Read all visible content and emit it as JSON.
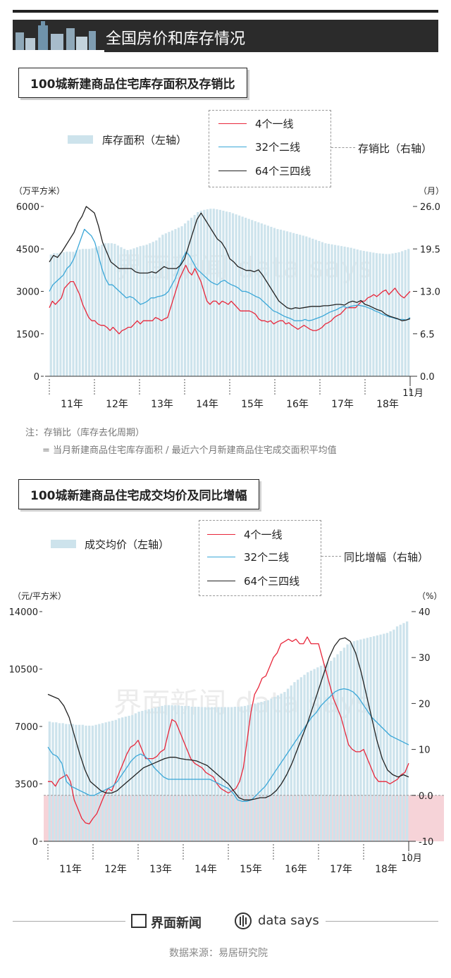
{
  "header": {
    "title": "全国房价和库存情况"
  },
  "chart1": {
    "section_title": "100城新建商品住宅库存面积及存销比",
    "legend": {
      "bar_label": "库存面积（左轴）",
      "right_label": "存销比（右轴）",
      "series": [
        "4个一线",
        "32个二线",
        "64个三四线"
      ]
    }
  },
  "note": {
    "line1": "注：存销比（库存去化周期）",
    "line2": "= 当月新建商品住宅库存面积 / 最近六个月新建商品住宅成交面积平均值"
  },
  "chart2": {
    "section_title": "100城新建商品住宅成交均价及同比增幅",
    "legend": {
      "bar_label": "成交均价（左轴）",
      "right_label": "同比增幅（右轴）",
      "series": [
        "4个一线",
        "32个二线",
        "64个三四线"
      ]
    }
  },
  "chart_data": [
    {
      "type": "bar",
      "title": "100城新建商品住宅库存面积及存销比",
      "ylabel_left": "（万平方米）",
      "ylabel_right": "（月）",
      "ylim_left": [
        0,
        6000
      ],
      "yticks_left": [
        "0",
        "1500",
        "3000",
        "4500",
        "6000"
      ],
      "ylim_right": [
        0,
        26
      ],
      "yticks_right": [
        "0.0",
        "6.5",
        "13.0",
        "19.5",
        "26.0"
      ],
      "x_labels": [
        "11年",
        "12年",
        "13年",
        "14年",
        "15年",
        "16年",
        "17年",
        "18年"
      ],
      "end_label": "11月",
      "colors": {
        "bar": "#cde3ec",
        "tier1": "#e8273b",
        "tier2": "#3aa7d8",
        "tier3": "#222222"
      },
      "bars": [
        4300,
        4350,
        4350,
        4380,
        4380,
        4400,
        4400,
        4400,
        4450,
        4480,
        4500,
        4500,
        4500,
        4520,
        4550,
        4600,
        4650,
        4700,
        4700,
        4700,
        4680,
        4620,
        4560,
        4500,
        4460,
        4480,
        4520,
        4560,
        4600,
        4620,
        4650,
        4700,
        4750,
        4800,
        4900,
        5000,
        5050,
        5100,
        5150,
        5200,
        5250,
        5300,
        5400,
        5500,
        5600,
        5700,
        5800,
        5850,
        5880,
        5900,
        5920,
        5920,
        5900,
        5880,
        5850,
        5820,
        5800,
        5760,
        5720,
        5680,
        5640,
        5600,
        5560,
        5520,
        5480,
        5440,
        5400,
        5360,
        5320,
        5280,
        5240,
        5200,
        5180,
        5150,
        5120,
        5090,
        5060,
        5030,
        5000,
        4970,
        4940,
        4900,
        4860,
        4820,
        4780,
        4740,
        4700,
        4680,
        4660,
        4640,
        4620,
        4600,
        4580,
        4560,
        4540,
        4510,
        4480,
        4450,
        4430,
        4410,
        4390,
        4370,
        4350,
        4340,
        4330,
        4320,
        4320,
        4340,
        4360,
        4380,
        4420,
        4460,
        4500
      ],
      "series": [
        {
          "name": "4个一线",
          "values": [
            10.5,
            11.5,
            11,
            11.5,
            12,
            13.5,
            14,
            14.5,
            14.5,
            13.5,
            12.5,
            11,
            10,
            9,
            8.5,
            8.5,
            8,
            7.8,
            7.8,
            7.5,
            7,
            7.5,
            7,
            6.5,
            7,
            7.2,
            7.5,
            7.5,
            8,
            8.5,
            8,
            8.5,
            8.5,
            8.5,
            8.5,
            9,
            8.8,
            8.5,
            8.8,
            9,
            10.5,
            12,
            13.5,
            15,
            16,
            17,
            16,
            15.5,
            16.5,
            15.5,
            14.5,
            13,
            11.5,
            11,
            11.5,
            11.5,
            11,
            11.5,
            11.3,
            11,
            11.5,
            11,
            10.5,
            10,
            10,
            10,
            10,
            9.8,
            9.5,
            8.8,
            8.5,
            8.5,
            8.3,
            8.5,
            8,
            8.3,
            8.5,
            8.5,
            8,
            8.2,
            7.8,
            7.5,
            7.2,
            7.5,
            7.8,
            7.5,
            7.2,
            7,
            7,
            7.2,
            7.5,
            8,
            8.2,
            8.5,
            9,
            9.3,
            9.5,
            10,
            10.5,
            10.5,
            10.5,
            10.5,
            11,
            11.5,
            11.5,
            12,
            12.2,
            12.5,
            12.2,
            12.6,
            13,
            13.2,
            12.5,
            13,
            13.5,
            12.8,
            12.3,
            12,
            12.5,
            13
          ]
        },
        {
          "name": "32个二线",
          "values": [
            13,
            14,
            14.5,
            15,
            15.5,
            16.5,
            17,
            18,
            19.5,
            21,
            22.5,
            22,
            21.5,
            20.5,
            18.5,
            16.5,
            15,
            14,
            14,
            13.5,
            13,
            12.5,
            12,
            12.2,
            12,
            11.5,
            11,
            11.2,
            11.5,
            12,
            12,
            12.2,
            12.3,
            12.5,
            13,
            14,
            15,
            16.5,
            18,
            19,
            18.5,
            17.5,
            16.5,
            16,
            15.5,
            15,
            14.5,
            14.2,
            14,
            14.5,
            14.7,
            14.3,
            14,
            13.8,
            13.5,
            13,
            13,
            12.8,
            12.5,
            12.2,
            12,
            11.5,
            11,
            10.5,
            10,
            9.8,
            9.5,
            9.2,
            9,
            8.8,
            8.5,
            8.5,
            8.5,
            8.7,
            8.5,
            8.6,
            8.8,
            9,
            9.2,
            9.5,
            9.8,
            10,
            10.2,
            10.5,
            10.7,
            10.5,
            10.7,
            10.8,
            10.9,
            10.8,
            10.7,
            10.5,
            10.3,
            10,
            9.8,
            9.5,
            9.3,
            9.1,
            9,
            8.8,
            8.7,
            8.7,
            8.6,
            9
          ]
        },
        {
          "name": "64个三四线",
          "values": [
            17.5,
            18.5,
            18.2,
            19,
            20,
            21,
            22,
            23.5,
            24.5,
            26,
            25.5,
            25,
            23,
            20.5,
            19,
            17.5,
            17,
            16.5,
            16.5,
            16.5,
            16.5,
            16,
            15.8,
            15.8,
            15.8,
            16,
            15.8,
            16.3,
            16.8,
            16.5,
            16.5,
            16.5,
            17,
            18,
            20,
            22,
            24,
            25,
            24,
            23,
            22,
            21,
            20.5,
            19.5,
            18,
            17.5,
            16.8,
            16.5,
            16.2,
            16.2,
            16,
            16.3,
            15.5,
            14.5,
            13.5,
            12.5,
            11.5,
            11,
            10.5,
            10.3,
            10.5,
            10.4,
            10.5,
            10.6,
            10.7,
            10.7,
            10.7,
            10.8,
            10.8,
            10.9,
            11,
            11,
            10.9,
            11.3,
            11.5,
            11.3,
            11.6,
            11,
            10.8,
            10.5,
            10.2,
            10,
            9.5,
            9.2,
            9,
            8.8,
            8.5,
            8.6,
            8.8
          ]
        }
      ]
    },
    {
      "type": "bar",
      "title": "100城新建商品住宅成交均价及同比增幅",
      "ylabel_left": "（元/平方米）",
      "ylabel_right": "（%）",
      "ylim_left": [
        0,
        14000
      ],
      "yticks_left": [
        "0",
        "3500",
        "7000",
        "10500",
        "14000"
      ],
      "ylim_right": [
        -10,
        40
      ],
      "yticks_right": [
        "-10",
        "0.0",
        "10",
        "20",
        "30",
        "40"
      ],
      "x_labels": [
        "11年",
        "12年",
        "13年",
        "14年",
        "15年",
        "16年",
        "17年",
        "18年"
      ],
      "end_label": "10月",
      "colors": {
        "bar": "#cde3ec",
        "negative_band": "#f6d3d8",
        "tier1": "#e8273b",
        "tier2": "#3aa7d8",
        "tier3": "#222222"
      },
      "bars": [
        7300,
        7250,
        7250,
        7200,
        7200,
        7150,
        7150,
        7150,
        7100,
        7100,
        7100,
        7050,
        7050,
        7050,
        7100,
        7150,
        7200,
        7250,
        7300,
        7350,
        7400,
        7500,
        7550,
        7600,
        7650,
        7700,
        7800,
        7900,
        7950,
        8000,
        8050,
        8100,
        8150,
        8200,
        8250,
        8300,
        8300,
        8300,
        8300,
        8280,
        8250,
        8250,
        8250,
        8200,
        8200,
        8200,
        8180,
        8180,
        8180,
        8180,
        8180,
        8180,
        8180,
        8180,
        8180,
        8180,
        8200,
        8200,
        8220,
        8250,
        8300,
        8350,
        8400,
        8450,
        8500,
        8550,
        8600,
        8700,
        8800,
        8900,
        9000,
        9100,
        9300,
        9500,
        9700,
        9850,
        10000,
        10150,
        10300,
        10400,
        10500,
        10600,
        10700,
        10800,
        10900,
        11000,
        11200,
        11400,
        11600,
        11800,
        12000,
        12100,
        12200,
        12250,
        12300,
        12350,
        12400,
        12450,
        12500,
        12550,
        12600,
        12650,
        12700,
        12800,
        12900,
        13100,
        13200,
        13300,
        13400
      ],
      "series": [
        {
          "name": "4个一线",
          "values": [
            3,
            3,
            2,
            3.5,
            4,
            4.5,
            3,
            -1,
            -3,
            -5,
            -6,
            -6.2,
            -5,
            -4,
            -2,
            0,
            1.5,
            1,
            3,
            5,
            7,
            9,
            10.5,
            11,
            12,
            10,
            8,
            8,
            8,
            8.5,
            9.5,
            10,
            13.5,
            16.5,
            16,
            14,
            12,
            10,
            8,
            7,
            6.5,
            6,
            5,
            4.5,
            4,
            2.5,
            1.5,
            1,
            0.5,
            1,
            1.5,
            3,
            6,
            12,
            18,
            22,
            23.5,
            25.5,
            26,
            28,
            30,
            31,
            33,
            33.5,
            34,
            33.5,
            34,
            33,
            33,
            34.5,
            33,
            33,
            33,
            30,
            27,
            24,
            21,
            19,
            17,
            14,
            11,
            10,
            9.5,
            9.5,
            10,
            8,
            6,
            4,
            3,
            3,
            3,
            2.5,
            3,
            3.5,
            4.5,
            5,
            7
          ]
        },
        {
          "name": "32个二线",
          "values": [
            10.5,
            9,
            8.5,
            7,
            3,
            2,
            1.5,
            1,
            0.5,
            0,
            0,
            0.5,
            1,
            1.5,
            2,
            3,
            4.5,
            6,
            7.5,
            8.5,
            9,
            8.5,
            7.5,
            6,
            5,
            4,
            3.5,
            3.5,
            3.5,
            3.5,
            3.5,
            3.5,
            3.5,
            3.5,
            3.5,
            3.5,
            3,
            2.5,
            2,
            1.5,
            0.5,
            -1,
            -1.3,
            -1.3,
            -1,
            0,
            1,
            2,
            3.5,
            5,
            6.5,
            8,
            9.5,
            11,
            12.5,
            14,
            15.5,
            17,
            18,
            19.5,
            20.5,
            21.5,
            22.5,
            23,
            23.2,
            23,
            22.5,
            21.5,
            20,
            18.5,
            17,
            16,
            15,
            14,
            13,
            12.5,
            12,
            11.5,
            11
          ]
        },
        {
          "name": "64个三四线",
          "values": [
            22,
            21.5,
            21,
            19.5,
            17,
            13,
            9,
            5.5,
            3,
            2,
            1,
            0.5,
            0.5,
            1,
            2,
            3,
            4,
            5,
            6,
            6.5,
            7,
            7.5,
            8,
            8.3,
            8.3,
            8,
            7.8,
            7.7,
            7.5,
            7,
            6.5,
            5.5,
            4.5,
            3.5,
            2.5,
            1,
            -0.5,
            -1,
            -1,
            -0.8,
            -0.5,
            -0.5,
            0,
            1,
            2.5,
            4.5,
            7,
            10,
            13,
            16,
            19.5,
            23,
            26.5,
            30,
            32.5,
            34,
            34.3,
            33.5,
            31,
            27,
            22,
            17,
            12,
            8,
            5.5,
            4.5,
            4,
            4.5,
            4
          ]
        }
      ]
    }
  ],
  "footer": {
    "brand1": "界面新闻",
    "brand2": "data says",
    "source": "数据来源：易居研究院"
  }
}
